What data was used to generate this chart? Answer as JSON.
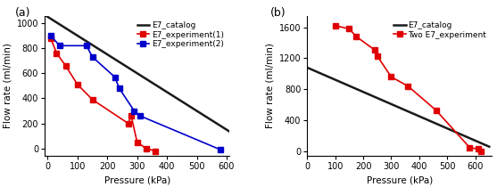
{
  "panel_a": {
    "catalog": {
      "x": [
        -20,
        620
      ],
      "y": [
        1080,
        120
      ],
      "color": "#1a1a1a",
      "linewidth": 1.8
    },
    "exp1": {
      "x": [
        10,
        30,
        60,
        100,
        150,
        270,
        280,
        300,
        330,
        360
      ],
      "y": [
        880,
        760,
        660,
        510,
        390,
        200,
        260,
        50,
        0,
        -20
      ],
      "color": "#e00000",
      "marker": "s",
      "markersize": 4,
      "linewidth": 1.2
    },
    "exp2": {
      "x": [
        10,
        40,
        130,
        150,
        225,
        240,
        290,
        310,
        580
      ],
      "y": [
        900,
        820,
        820,
        730,
        570,
        480,
        300,
        260,
        -10
      ],
      "color": "#0000cc",
      "marker": "s",
      "markersize": 4,
      "linewidth": 1.2
    },
    "xlabel": "Pressure (kPa)",
    "ylabel": "Flow rate (ml/min)",
    "xlim": [
      -10,
      610
    ],
    "ylim": [
      -60,
      1060
    ],
    "xticks": [
      0,
      100,
      200,
      300,
      400,
      500,
      600
    ],
    "yticks": [
      0,
      200,
      400,
      600,
      800,
      1000
    ],
    "legend": [
      "E7_catalog",
      "E7_experiment(1)",
      "E7_experiment(2)"
    ],
    "label": "(a)"
  },
  "panel_b": {
    "catalog": {
      "x": [
        0,
        650
      ],
      "y": [
        1080,
        60
      ],
      "color": "#1a1a1a",
      "linewidth": 1.8
    },
    "exp": {
      "x": [
        100,
        150,
        175,
        240,
        250,
        300,
        360,
        460,
        580,
        610,
        620
      ],
      "y": [
        1620,
        1580,
        1480,
        1310,
        1230,
        960,
        840,
        530,
        50,
        30,
        0
      ],
      "color": "#e00000",
      "marker": "s",
      "markersize": 4,
      "linewidth": 1.2
    },
    "xlabel": "Pressure (kPa)",
    "ylabel": "Flow rate (ml/min)",
    "xlim": [
      0,
      660
    ],
    "ylim": [
      -60,
      1750
    ],
    "xticks": [
      0,
      100,
      200,
      300,
      400,
      500,
      600
    ],
    "yticks": [
      0,
      400,
      800,
      1200,
      1600
    ],
    "legend": [
      "E7_catalog",
      "Two E7_experiment"
    ],
    "label": "(b)"
  },
  "background_color": "#ffffff",
  "tick_fontsize": 7,
  "label_fontsize": 7.5,
  "legend_fontsize": 6.5
}
